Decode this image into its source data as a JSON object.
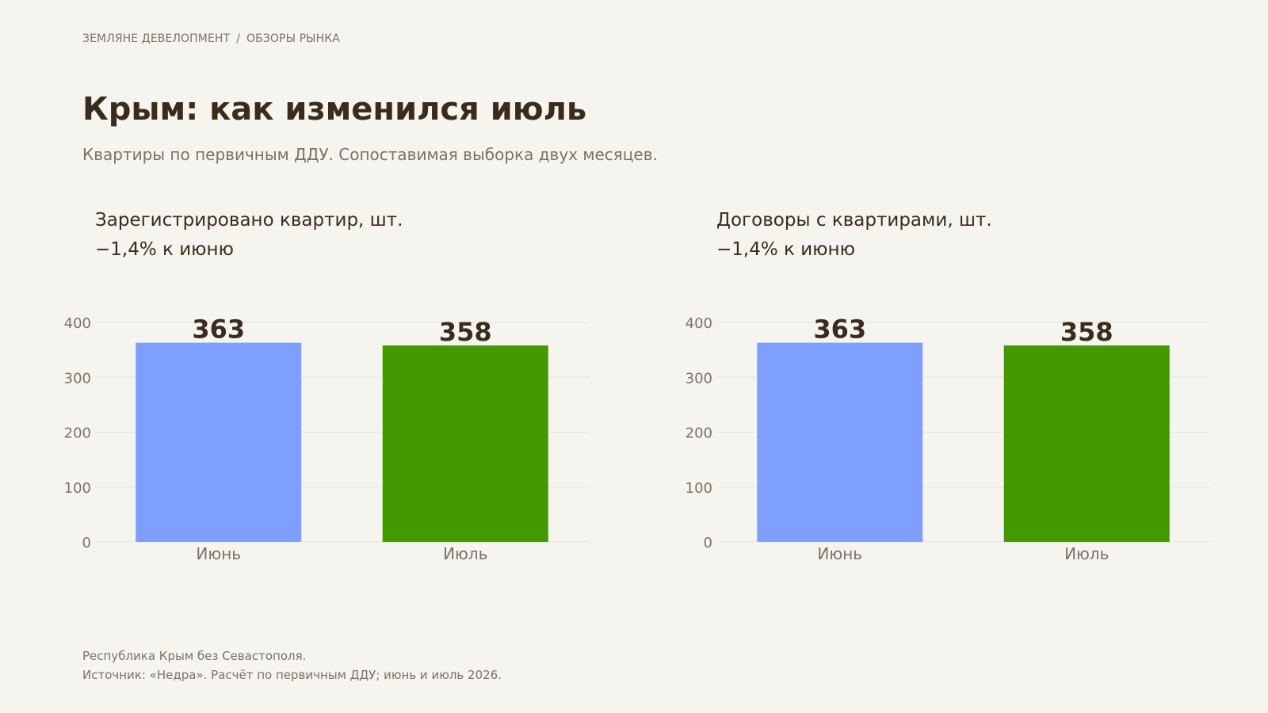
{
  "breadcrumb": {
    "company": "ЗЕМЛЯНЕ ДЕВЕЛОПМЕНТ",
    "separator": "/",
    "section": "ОБЗОРЫ РЫНКА"
  },
  "title": "Крым: как изменился июль",
  "subtitle": "Квартиры по первичным ДДУ. Сопоставимая выборка двух месяцев.",
  "colors": {
    "june": "#7f9fff",
    "july": "#429900",
    "text": "#3a2c1d",
    "muted": "#7b7266",
    "grid": "#e6e3dc"
  },
  "chart_data": [
    {
      "type": "bar",
      "title": "Зарегистрировано квартир, шт.",
      "subtitle": "−1,4% к июню",
      "categories": [
        "Июнь",
        "Июль"
      ],
      "values": [
        363,
        358
      ],
      "value_labels": [
        "363",
        "358"
      ],
      "colors": [
        "#7f9fff",
        "#429900"
      ],
      "ylim": [
        0,
        400
      ],
      "yticks": [
        0,
        100,
        200,
        300,
        400
      ],
      "grid": true
    },
    {
      "type": "bar",
      "title": "Договоры с квартирами, шт.",
      "subtitle": "−1,4% к июню",
      "categories": [
        "Июнь",
        "Июль"
      ],
      "values": [
        363,
        358
      ],
      "value_labels": [
        "363",
        "358"
      ],
      "colors": [
        "#7f9fff",
        "#429900"
      ],
      "ylim": [
        0,
        400
      ],
      "yticks": [
        0,
        100,
        200,
        300,
        400
      ],
      "grid": true
    }
  ],
  "footer": {
    "line1": "Республика Крым без Севастополя.",
    "line2": "Источник: «Недра». Расчёт по первичным ДДУ; июнь и июль 2026."
  }
}
